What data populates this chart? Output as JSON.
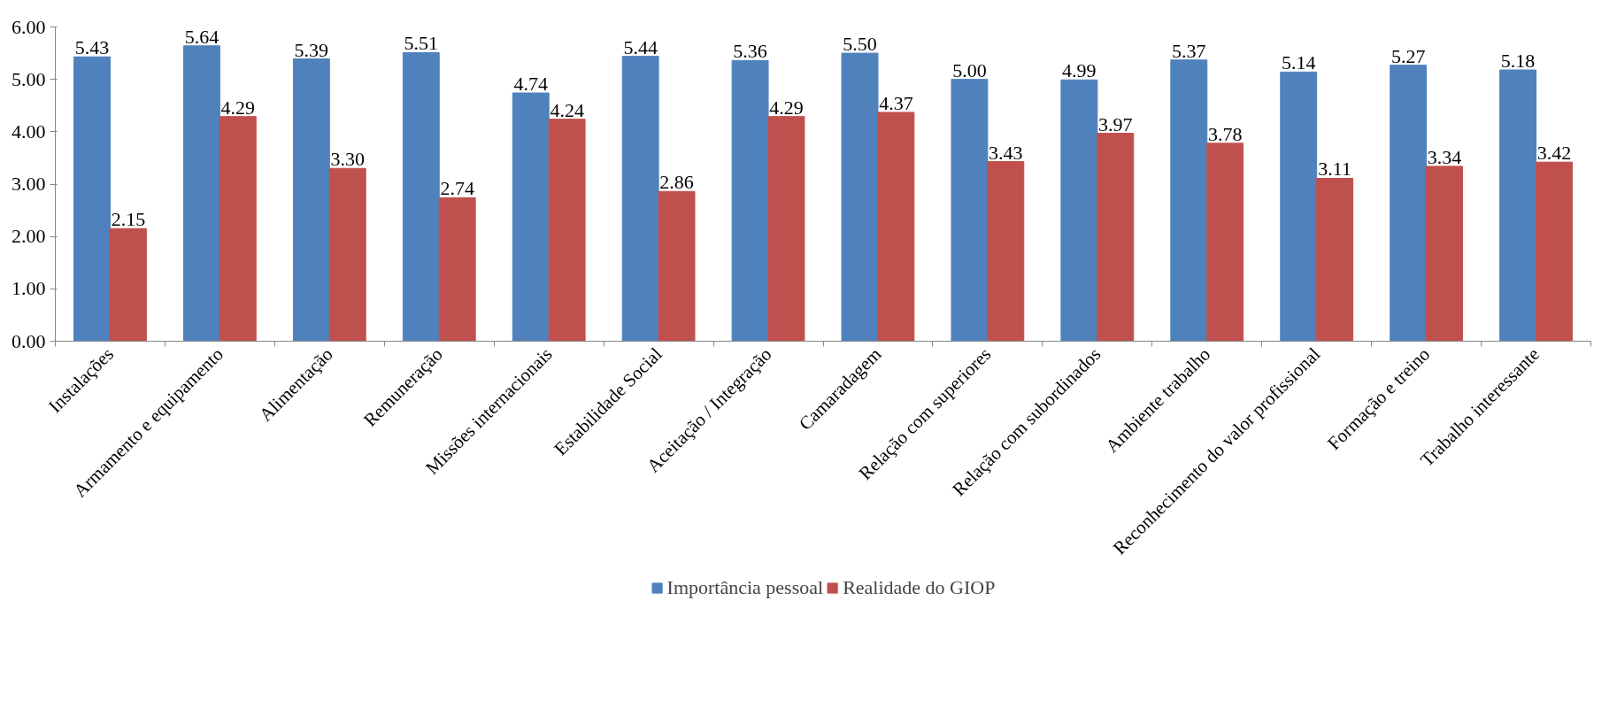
{
  "chart_data": {
    "type": "bar",
    "categories": [
      "Instalações",
      "Armamento e equipamento",
      "Alimentação",
      "Remuneração",
      "Missões internacionais",
      "Estabilidade Social",
      "Aceitação / Integração",
      "Camaradagem",
      "Relação com superiores",
      "Relação com subordinados",
      "Ambiente trabalho",
      "Reconhecimento do valor profissional",
      "Formação e treino",
      "Trabalho interessante"
    ],
    "series": [
      {
        "name": "Importância pessoal",
        "color": "#4f81bd",
        "values": [
          5.43,
          5.64,
          5.39,
          5.51,
          4.74,
          5.44,
          5.36,
          5.5,
          5.0,
          4.99,
          5.37,
          5.14,
          5.27,
          5.18
        ],
        "value_labels": [
          "5.43",
          "5.64",
          "5.39",
          "5.51",
          "4.74",
          "5.44",
          "5.36",
          "5.50",
          "5.00",
          "4.99",
          "5.37",
          "5.14",
          "5.27",
          "5.18"
        ]
      },
      {
        "name": "Realidade do GIOP",
        "color": "#c0504d",
        "values": [
          2.15,
          4.29,
          3.3,
          2.74,
          4.24,
          2.86,
          4.29,
          4.37,
          3.43,
          3.97,
          3.78,
          3.11,
          3.34,
          3.42
        ],
        "value_labels": [
          "2.15",
          "4.29",
          "3.30",
          "2.74",
          "4.24",
          "2.86",
          "4.29",
          "4.37",
          "3.43",
          "3.97",
          "3.78",
          "3.11",
          "3.34",
          "3.42"
        ]
      }
    ],
    "ylim": [
      0,
      6
    ],
    "yticks": [
      {
        "value": 0,
        "label": "0.00"
      },
      {
        "value": 1,
        "label": "1.00"
      },
      {
        "value": 2,
        "label": "2.00"
      },
      {
        "value": 3,
        "label": "3.00"
      },
      {
        "value": 4,
        "label": "4.00"
      },
      {
        "value": 5,
        "label": "5.00"
      },
      {
        "value": 6,
        "label": "6.00"
      }
    ],
    "grid": false,
    "legend": "bottom"
  }
}
